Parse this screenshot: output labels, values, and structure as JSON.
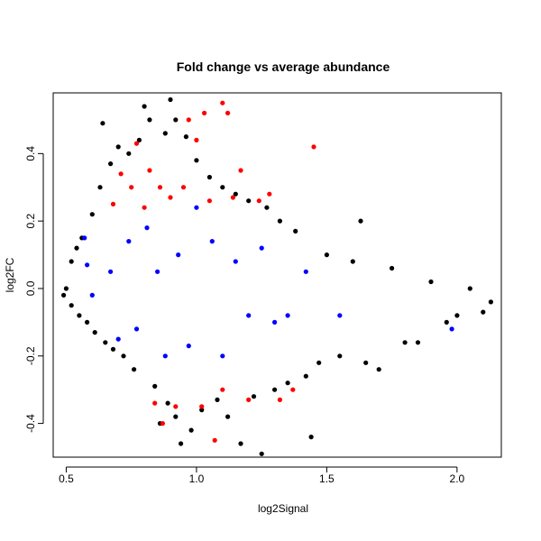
{
  "chart_data": {
    "type": "scatter",
    "title": "Fold change vs average abundance",
    "xlabel": "log2Signal",
    "ylabel": "log2FC",
    "xlim": [
      0.45,
      2.17
    ],
    "ylim": [
      -0.5,
      0.58
    ],
    "x_ticks": [
      0.5,
      1.0,
      1.5,
      2.0
    ],
    "x_tick_labels": [
      "0.5",
      "1.0",
      "1.5",
      "2.0"
    ],
    "y_ticks": [
      -0.4,
      -0.2,
      0.0,
      0.2,
      0.4
    ],
    "y_tick_labels": [
      "-0.4",
      "-0.2",
      "0.0",
      "0.2",
      "0.4"
    ],
    "grid": false,
    "legend": "none",
    "series": [
      {
        "color": "#000000",
        "points": [
          [
            0.49,
            -0.02
          ],
          [
            0.5,
            0.0
          ],
          [
            0.52,
            -0.05
          ],
          [
            0.52,
            0.08
          ],
          [
            0.54,
            0.12
          ],
          [
            0.55,
            -0.08
          ],
          [
            0.56,
            0.15
          ],
          [
            0.58,
            -0.1
          ],
          [
            0.6,
            0.22
          ],
          [
            0.61,
            -0.13
          ],
          [
            0.63,
            0.3
          ],
          [
            0.64,
            0.49
          ],
          [
            0.65,
            -0.16
          ],
          [
            0.67,
            0.37
          ],
          [
            0.68,
            -0.18
          ],
          [
            0.7,
            0.42
          ],
          [
            0.72,
            -0.2
          ],
          [
            0.74,
            0.4
          ],
          [
            0.76,
            -0.24
          ],
          [
            0.78,
            0.44
          ],
          [
            0.8,
            0.54
          ],
          [
            0.82,
            0.5
          ],
          [
            0.84,
            -0.29
          ],
          [
            0.86,
            -0.4
          ],
          [
            0.88,
            0.46
          ],
          [
            0.89,
            -0.34
          ],
          [
            0.9,
            0.56
          ],
          [
            0.92,
            0.5
          ],
          [
            0.92,
            -0.38
          ],
          [
            0.94,
            -0.46
          ],
          [
            0.96,
            0.45
          ],
          [
            0.98,
            -0.42
          ],
          [
            1.0,
            0.38
          ],
          [
            1.02,
            -0.36
          ],
          [
            1.05,
            0.33
          ],
          [
            1.08,
            -0.33
          ],
          [
            1.1,
            0.3
          ],
          [
            1.12,
            -0.38
          ],
          [
            1.15,
            0.28
          ],
          [
            1.17,
            -0.46
          ],
          [
            1.2,
            0.26
          ],
          [
            1.22,
            -0.32
          ],
          [
            1.25,
            -0.49
          ],
          [
            1.27,
            0.24
          ],
          [
            1.3,
            -0.3
          ],
          [
            1.32,
            0.2
          ],
          [
            1.35,
            -0.28
          ],
          [
            1.38,
            0.17
          ],
          [
            1.42,
            -0.26
          ],
          [
            1.44,
            -0.44
          ],
          [
            1.47,
            -0.22
          ],
          [
            1.5,
            0.1
          ],
          [
            1.55,
            -0.2
          ],
          [
            1.6,
            0.08
          ],
          [
            1.63,
            0.2
          ],
          [
            1.65,
            -0.22
          ],
          [
            1.7,
            -0.24
          ],
          [
            1.75,
            0.06
          ],
          [
            1.8,
            -0.16
          ],
          [
            1.85,
            -0.16
          ],
          [
            1.9,
            0.02
          ],
          [
            1.96,
            -0.1
          ],
          [
            2.0,
            -0.08
          ],
          [
            2.05,
            0.0
          ],
          [
            2.1,
            -0.07
          ],
          [
            2.13,
            -0.04
          ]
        ]
      },
      {
        "color": "#ff0000",
        "points": [
          [
            0.68,
            0.25
          ],
          [
            0.71,
            0.34
          ],
          [
            0.75,
            0.3
          ],
          [
            0.77,
            0.43
          ],
          [
            0.8,
            0.24
          ],
          [
            0.82,
            0.35
          ],
          [
            0.84,
            -0.34
          ],
          [
            0.86,
            0.3
          ],
          [
            0.87,
            -0.4
          ],
          [
            0.9,
            0.27
          ],
          [
            0.92,
            -0.35
          ],
          [
            0.95,
            0.3
          ],
          [
            0.97,
            0.5
          ],
          [
            1.0,
            0.44
          ],
          [
            1.02,
            -0.35
          ],
          [
            1.03,
            0.52
          ],
          [
            1.05,
            0.26
          ],
          [
            1.07,
            -0.45
          ],
          [
            1.1,
            0.55
          ],
          [
            1.1,
            -0.3
          ],
          [
            1.12,
            0.52
          ],
          [
            1.14,
            0.27
          ],
          [
            1.17,
            0.35
          ],
          [
            1.2,
            -0.33
          ],
          [
            1.24,
            0.26
          ],
          [
            1.28,
            0.28
          ],
          [
            1.32,
            -0.33
          ],
          [
            1.37,
            -0.3
          ],
          [
            1.45,
            0.42
          ]
        ]
      },
      {
        "color": "#0000ff",
        "points": [
          [
            0.57,
            0.15
          ],
          [
            0.58,
            0.07
          ],
          [
            0.6,
            -0.02
          ],
          [
            0.67,
            0.05
          ],
          [
            0.7,
            -0.15
          ],
          [
            0.74,
            0.14
          ],
          [
            0.77,
            -0.12
          ],
          [
            0.81,
            0.18
          ],
          [
            0.85,
            0.05
          ],
          [
            0.88,
            -0.2
          ],
          [
            0.93,
            0.1
          ],
          [
            0.97,
            -0.17
          ],
          [
            1.0,
            0.24
          ],
          [
            1.06,
            0.14
          ],
          [
            1.1,
            -0.2
          ],
          [
            1.15,
            0.08
          ],
          [
            1.2,
            -0.08
          ],
          [
            1.25,
            0.12
          ],
          [
            1.3,
            -0.1
          ],
          [
            1.35,
            -0.08
          ],
          [
            1.42,
            0.05
          ],
          [
            1.55,
            -0.08
          ],
          [
            1.98,
            -0.12
          ]
        ]
      }
    ]
  }
}
